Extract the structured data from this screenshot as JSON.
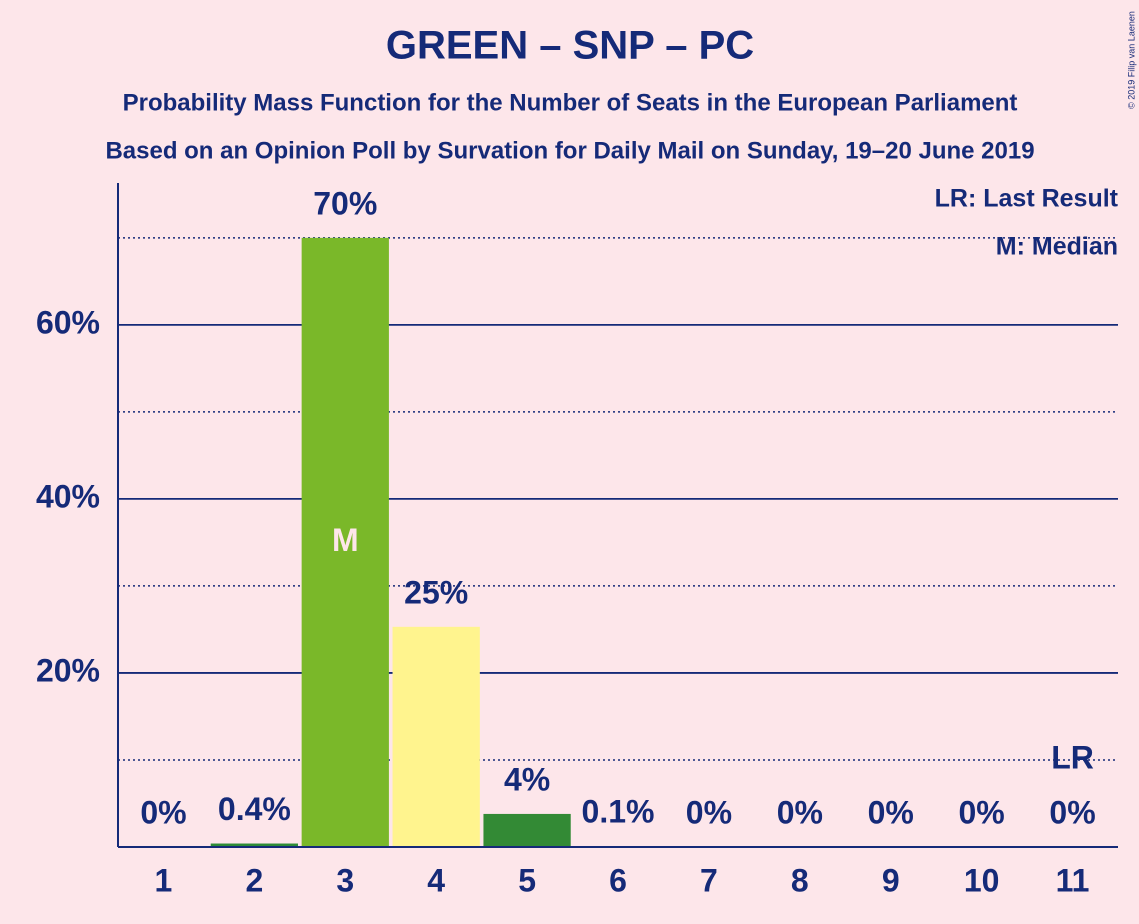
{
  "chart_data": {
    "type": "bar",
    "title": "GREEN – SNP – PC",
    "subtitle": "Probability Mass Function for the Number of Seats in the European Parliament",
    "subtitle2": "Based on an Opinion Poll by Survation for Daily Mail on Sunday, 19–20 June 2019",
    "copyright": "© 2019 Filip van Laenen",
    "categories": [
      "1",
      "2",
      "3",
      "4",
      "5",
      "6",
      "7",
      "8",
      "9",
      "10",
      "11"
    ],
    "values": [
      0,
      0.4,
      70,
      25.3,
      3.8,
      0.1,
      0,
      0,
      0,
      0,
      0
    ],
    "value_labels": [
      "0%",
      "0.4%",
      "70%",
      "25%",
      "4%",
      "0.1%",
      "0%",
      "0%",
      "0%",
      "0%",
      "0%"
    ],
    "colors": [
      "#2e8b37",
      "#2e8b37",
      "#7ab829",
      "#fff48e",
      "#338a35",
      "#2e8b37",
      "#2e8b37",
      "#2e8b37",
      "#2e8b37",
      "#2e8b37",
      "#2e8b37"
    ],
    "ylim": [
      0,
      76.3
    ],
    "yticks": [
      {
        "value": 20,
        "label": "20%"
      },
      {
        "value": 40,
        "label": "40%"
      },
      {
        "value": 60,
        "label": "60%"
      }
    ],
    "minor_yticks": [
      10,
      30,
      50,
      70
    ],
    "median": {
      "index": 2,
      "label": "M"
    },
    "last_result": {
      "index": 10,
      "label": "LR"
    },
    "legend": [
      "LR: Last Result",
      "M: Median"
    ],
    "grid": true
  }
}
